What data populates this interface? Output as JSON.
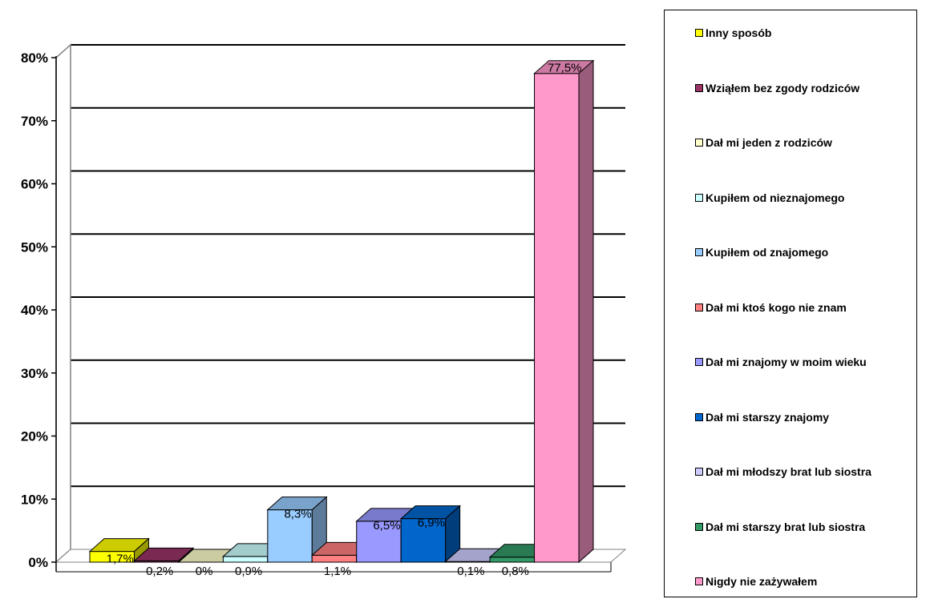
{
  "chart_data": {
    "type": "bar",
    "style": "3d-column",
    "ylim": [
      0,
      80
    ],
    "y_ticks": [
      "0%",
      "10%",
      "20%",
      "30%",
      "40%",
      "50%",
      "60%",
      "70%",
      "80%"
    ],
    "grid": true,
    "legend_position": "right",
    "series": [
      {
        "name": "Inny sposób",
        "value": 1.7,
        "label": "1,7%",
        "color": "#ffff00"
      },
      {
        "name": "Wziąłem bez zgody rodziców",
        "value": 0.2,
        "label": "0,2%",
        "color": "#993366"
      },
      {
        "name": "Dał mi jeden z rodziców",
        "value": 0.0,
        "label": "0%",
        "color": "#ffffcc"
      },
      {
        "name": "Kupiłem od nieznajomego",
        "value": 0.9,
        "label": "0,9%",
        "color": "#ccffff"
      },
      {
        "name": "Kupiłem od znajomego",
        "value": 8.3,
        "label": "8,3%",
        "color": "#99ccff"
      },
      {
        "name": "Dał mi ktoś kogo nie znam",
        "value": 1.1,
        "label": "1,1%",
        "color": "#ff8080"
      },
      {
        "name": "Dał mi znajomy w moim wieku",
        "value": 6.5,
        "label": "6,5%",
        "color": "#9999ff"
      },
      {
        "name": "Dał mi starszy znajomy",
        "value": 6.9,
        "label": "6,9%",
        "color": "#0066cc"
      },
      {
        "name": "Dał mi młodszy brat lub siostra",
        "value": 0.1,
        "label": "0,1%",
        "color": "#ccccff"
      },
      {
        "name": "Dał mi starszy brat lub siostra",
        "value": 0.8,
        "label": "0,8%",
        "color": "#339966"
      },
      {
        "name": "Nigdy nie zażywałem",
        "value": 77.5,
        "label": "77,5%",
        "color": "#ff99cc"
      }
    ]
  }
}
